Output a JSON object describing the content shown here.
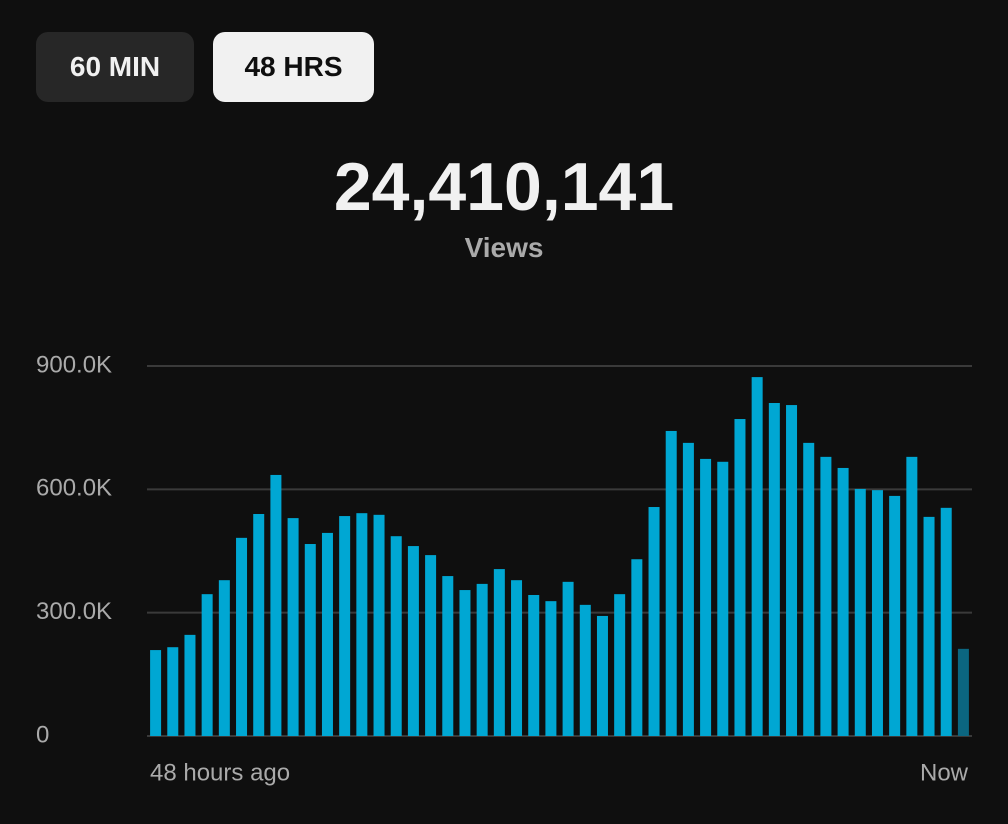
{
  "tabs": [
    "60 MIN",
    "48 HRS"
  ],
  "total": "24,410,141",
  "total_label": "Views",
  "chart_data": {
    "type": "bar",
    "categories": [
      "48 hours ago",
      null,
      null,
      null,
      null,
      null,
      null,
      null,
      null,
      null,
      null,
      null,
      null,
      null,
      null,
      null,
      null,
      null,
      null,
      null,
      null,
      null,
      null,
      null,
      null,
      null,
      null,
      null,
      null,
      null,
      null,
      null,
      null,
      null,
      null,
      null,
      null,
      null,
      null,
      null,
      null,
      null,
      null,
      null,
      null,
      null,
      null,
      "Now"
    ],
    "values": [
      209000,
      216000,
      246000,
      345000,
      379000,
      482000,
      540000,
      635000,
      530000,
      467000,
      494000,
      535000,
      542000,
      538000,
      486000,
      462000,
      440000,
      389000,
      355000,
      370000,
      406000,
      379000,
      343000,
      328000,
      375000,
      319000,
      292000,
      345000,
      430000,
      557000,
      742000,
      713000,
      674000,
      667000,
      771000,
      873000,
      810000,
      805000,
      713000,
      679000,
      652000,
      601000,
      598000,
      584000,
      679000,
      533000,
      555000,
      212000
    ],
    "colors": [
      "#00a7d3",
      "#00a7d3",
      "#00a7d3",
      "#00a7d3",
      "#00a7d3",
      "#00a7d3",
      "#00a7d3",
      "#00a7d3",
      "#00a7d3",
      "#00a7d3",
      "#00a7d3",
      "#00a7d3",
      "#00a7d3",
      "#00a7d3",
      "#00a7d3",
      "#00a7d3",
      "#00a7d3",
      "#00a7d3",
      "#00a7d3",
      "#00a7d3",
      "#00a7d3",
      "#00a7d3",
      "#00a7d3",
      "#00a7d3",
      "#00a7d3",
      "#00a7d3",
      "#00a7d3",
      "#00a7d3",
      "#00a7d3",
      "#00a7d3",
      "#00a7d3",
      "#00a7d3",
      "#00a7d3",
      "#00a7d3",
      "#00a7d3",
      "#00a7d3",
      "#00a7d3",
      "#00a7d3",
      "#00a7d3",
      "#00a7d3",
      "#00a7d3",
      "#00a7d3",
      "#00a7d3",
      "#00a7d3",
      "#00a7d3",
      "#00a7d3",
      "#00a7d3",
      "#0b6680"
    ],
    "ylim": [
      0,
      900000
    ],
    "yticks": [
      0,
      {
        "value": 300000,
        "label": "300.0K"
      },
      {
        "value": 600000,
        "label": "600.0K"
      },
      {
        "value": 900000,
        "label": "900.0K"
      }
    ],
    "grid": true
  }
}
